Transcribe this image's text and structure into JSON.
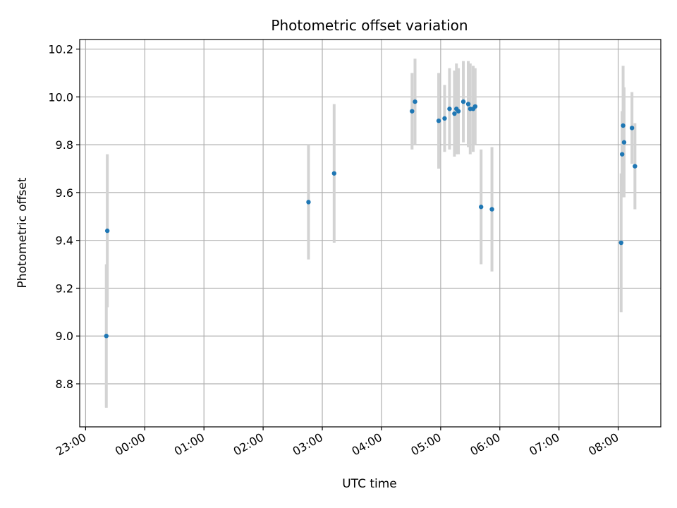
{
  "chart_data": {
    "type": "scatter",
    "title": "Photometric offset variation",
    "xlabel": "UTC time",
    "ylabel": "Photometric offset",
    "x_tick_labels": [
      "23:00",
      "00:00",
      "01:00",
      "02:00",
      "03:00",
      "04:00",
      "05:00",
      "06:00",
      "07:00",
      "08:00"
    ],
    "y_tick_labels": [
      "8.8",
      "9.0",
      "9.2",
      "9.4",
      "9.6",
      "9.8",
      "10.0",
      "10.2"
    ],
    "y_ticks": [
      8.8,
      9.0,
      9.2,
      9.4,
      9.6,
      9.8,
      10.0,
      10.2
    ],
    "xlim_hours_from_23": [
      -0.1,
      9.72
    ],
    "ylim": [
      8.62,
      10.24
    ],
    "grid": true,
    "colors": {
      "point": "#1f77b4",
      "errorbar": "#d3d3d3",
      "grid": "#b0b0b0",
      "axis": "#000000"
    },
    "series": [
      {
        "points": [
          {
            "x": "23:21",
            "y": 9.0,
            "err": 0.3
          },
          {
            "x": "23:22",
            "y": 9.44,
            "err": 0.32
          },
          {
            "x": "02:46",
            "y": 9.56,
            "err": 0.24
          },
          {
            "x": "03:12",
            "y": 9.68,
            "err": 0.29
          },
          {
            "x": "04:31",
            "y": 9.94,
            "err": 0.16
          },
          {
            "x": "04:34",
            "y": 9.98,
            "err": 0.18
          },
          {
            "x": "04:58",
            "y": 9.9,
            "err": 0.2
          },
          {
            "x": "05:04",
            "y": 9.91,
            "err": 0.14
          },
          {
            "x": "05:09",
            "y": 9.95,
            "err": 0.17
          },
          {
            "x": "05:14",
            "y": 9.93,
            "err": 0.18
          },
          {
            "x": "05:16",
            "y": 9.95,
            "err": 0.19
          },
          {
            "x": "05:18",
            "y": 9.94,
            "err": 0.18
          },
          {
            "x": "05:23",
            "y": 9.98,
            "err": 0.17
          },
          {
            "x": "05:28",
            "y": 9.97,
            "err": 0.18
          },
          {
            "x": "05:30",
            "y": 9.95,
            "err": 0.19
          },
          {
            "x": "05:33",
            "y": 9.95,
            "err": 0.18
          },
          {
            "x": "05:35",
            "y": 9.96,
            "err": 0.16
          },
          {
            "x": "05:41",
            "y": 9.54,
            "err": 0.24
          },
          {
            "x": "05:52",
            "y": 9.53,
            "err": 0.26
          },
          {
            "x": "08:03",
            "y": 9.39,
            "err": 0.29
          },
          {
            "x": "08:04",
            "y": 9.76,
            "err": 0.18
          },
          {
            "x": "08:05",
            "y": 9.88,
            "err": 0.25
          },
          {
            "x": "08:06",
            "y": 9.81,
            "err": 0.23
          },
          {
            "x": "08:14",
            "y": 9.87,
            "err": 0.15
          },
          {
            "x": "08:17",
            "y": 9.71,
            "err": 0.18
          }
        ]
      }
    ]
  }
}
